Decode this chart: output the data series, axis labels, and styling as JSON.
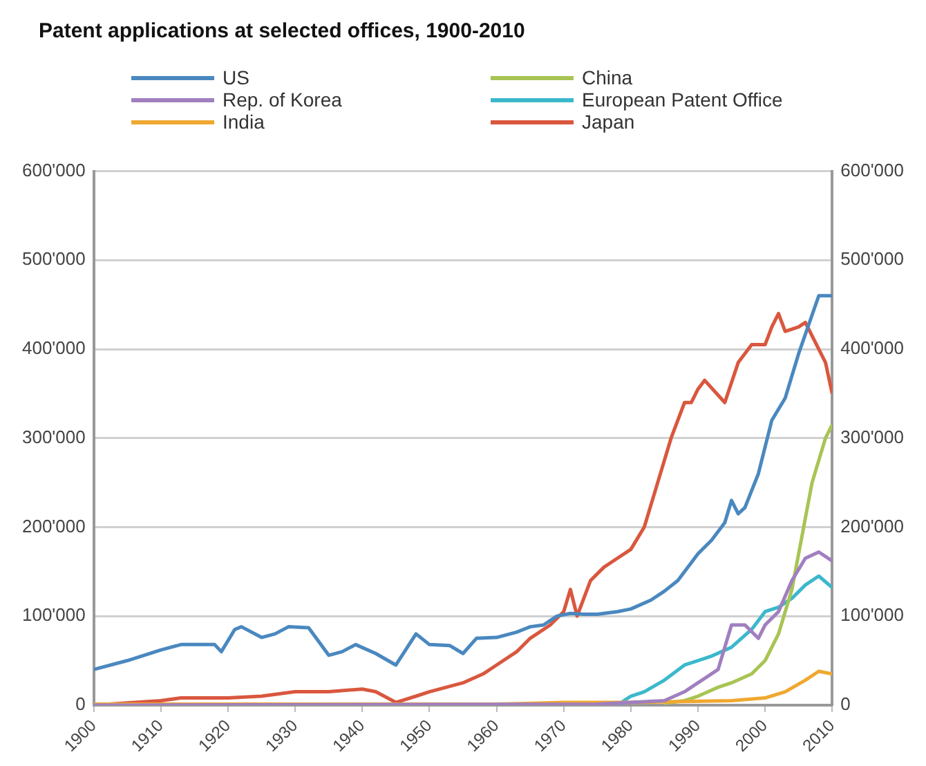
{
  "chart_data": {
    "type": "line",
    "title": "Patent applications at selected offices, 1900-2010",
    "xlim": [
      1900,
      2010
    ],
    "xticks": [
      1900,
      1910,
      1920,
      1930,
      1940,
      1950,
      1960,
      1970,
      1980,
      1990,
      2000,
      2010
    ],
    "ylim": [
      0,
      600000
    ],
    "yticks": [
      {
        "value": 0,
        "label": "0"
      },
      {
        "value": 100000,
        "label": "100'000"
      },
      {
        "value": 200000,
        "label": "200'000"
      },
      {
        "value": 300000,
        "label": "300'000"
      },
      {
        "value": 400000,
        "label": "400'000"
      },
      {
        "value": 500000,
        "label": "500'000"
      },
      {
        "value": 600000,
        "label": "600'000"
      }
    ],
    "y2lim": [
      0,
      600000
    ],
    "y2ticks": [
      {
        "value": 0,
        "label": "0"
      },
      {
        "value": 100000,
        "label": "100'000"
      },
      {
        "value": 200000,
        "label": "200'000"
      },
      {
        "value": 300000,
        "label": "300'000"
      },
      {
        "value": 400000,
        "label": "400'000"
      },
      {
        "value": 500000,
        "label": "500'000"
      },
      {
        "value": 600000,
        "label": "600'000"
      }
    ],
    "grid": "y",
    "legend": "top",
    "marker": "none",
    "line_style": "solid",
    "series": [
      {
        "name": "US",
        "color": "#4a88bf",
        "x": [
          1900,
          1905,
          1910,
          1913,
          1918,
          1919,
          1921,
          1922,
          1925,
          1927,
          1929,
          1932,
          1935,
          1937,
          1939,
          1942,
          1945,
          1948,
          1950,
          1953,
          1955,
          1957,
          1960,
          1963,
          1965,
          1967,
          1969,
          1971,
          1973,
          1975,
          1978,
          1980,
          1983,
          1985,
          1987,
          1989,
          1990,
          1992,
          1994,
          1995,
          1996,
          1997,
          1999,
          2001,
          2003,
          2005,
          2008,
          2010
        ],
        "values": [
          40000,
          50000,
          62000,
          68000,
          68000,
          60000,
          85000,
          88000,
          76000,
          80000,
          88000,
          87000,
          56000,
          60000,
          68000,
          58000,
          45000,
          80000,
          68000,
          67000,
          58000,
          75000,
          76000,
          82000,
          88000,
          90000,
          100000,
          103000,
          102000,
          102000,
          105000,
          108000,
          118000,
          128000,
          140000,
          160000,
          170000,
          185000,
          205000,
          230000,
          215000,
          222000,
          260000,
          320000,
          345000,
          395000,
          460000,
          460000
        ]
      },
      {
        "name": "Rep. of Korea",
        "color": "#a07fbf",
        "x": [
          1900,
          1975,
          1985,
          1988,
          1990,
          1993,
          1995,
          1997,
          1999,
          2000,
          2002,
          2004,
          2006,
          2008,
          2010
        ],
        "values": [
          0,
          1000,
          5000,
          15000,
          25000,
          40000,
          90000,
          90000,
          75000,
          90000,
          105000,
          140000,
          165000,
          172000,
          162000
        ]
      },
      {
        "name": "India",
        "color": "#f0a830",
        "x": [
          1900,
          1960,
          1970,
          1980,
          1995,
          2000,
          2003,
          2006,
          2008,
          2010
        ],
        "values": [
          1000,
          1000,
          3000,
          3000,
          5000,
          8000,
          15000,
          28000,
          38000,
          35000
        ]
      },
      {
        "name": "China",
        "color": "#a8c454",
        "x": [
          1985,
          1988,
          1990,
          1993,
          1995,
          1998,
          2000,
          2002,
          2004,
          2006,
          2007,
          2009,
          2010
        ],
        "values": [
          2000,
          5000,
          10000,
          20000,
          25000,
          35000,
          50000,
          80000,
          130000,
          210000,
          250000,
          300000,
          315000
        ]
      },
      {
        "name": "European Patent Office",
        "color": "#3cb8cc",
        "x": [
          1978,
          1980,
          1982,
          1985,
          1988,
          1990,
          1992,
          1995,
          1998,
          2000,
          2002,
          2004,
          2006,
          2008,
          2010
        ],
        "values": [
          0,
          10000,
          15000,
          28000,
          45000,
          50000,
          55000,
          65000,
          85000,
          105000,
          110000,
          120000,
          135000,
          145000,
          132000
        ]
      },
      {
        "name": "Japan",
        "color": "#d9573e",
        "x": [
          1900,
          1910,
          1913,
          1920,
          1925,
          1930,
          1935,
          1940,
          1942,
          1945,
          1948,
          1950,
          1955,
          1958,
          1960,
          1963,
          1965,
          1968,
          1970,
          1971,
          1972,
          1974,
          1976,
          1978,
          1980,
          1982,
          1984,
          1986,
          1988,
          1989,
          1990,
          1991,
          1994,
          1996,
          1998,
          2000,
          2001,
          2002,
          2003,
          2005,
          2006,
          2008,
          2009,
          2010
        ],
        "values": [
          0,
          5000,
          8000,
          8000,
          10000,
          15000,
          15000,
          18000,
          15000,
          3000,
          10000,
          15000,
          25000,
          35000,
          45000,
          60000,
          75000,
          90000,
          105000,
          130000,
          100000,
          140000,
          155000,
          165000,
          175000,
          200000,
          250000,
          300000,
          340000,
          340000,
          355000,
          365000,
          340000,
          385000,
          405000,
          405000,
          425000,
          440000,
          420000,
          425000,
          430000,
          400000,
          385000,
          350000
        ]
      }
    ]
  }
}
